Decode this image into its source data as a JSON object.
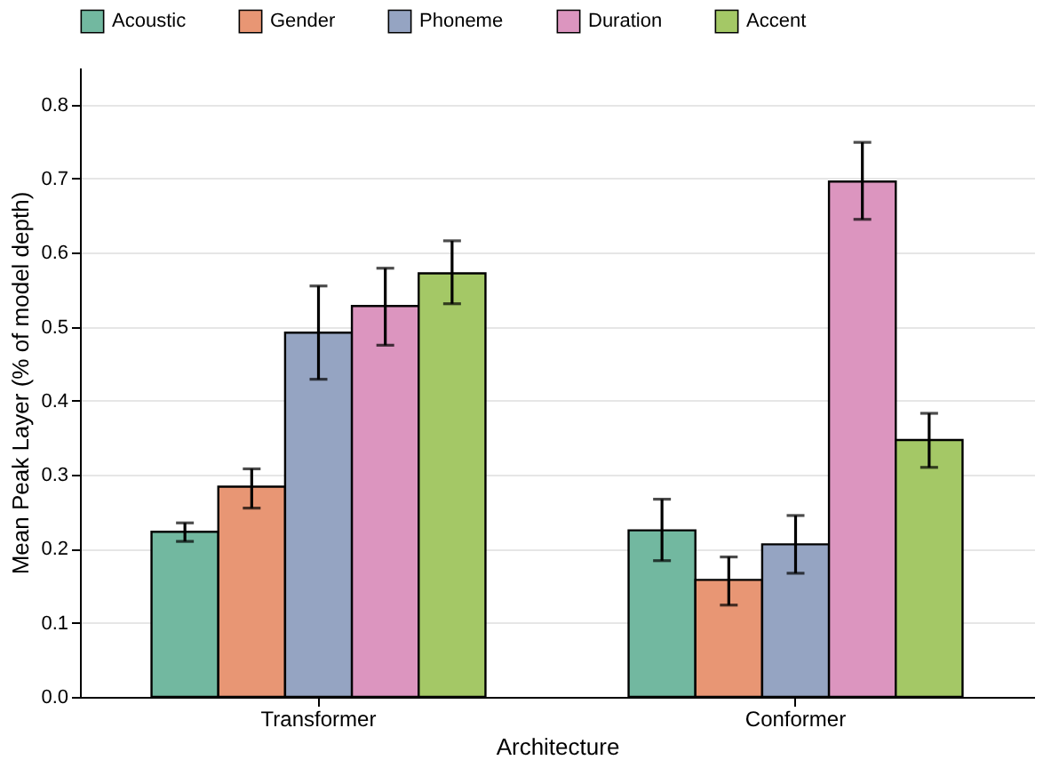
{
  "chart_data": {
    "type": "bar",
    "xlabel": "Architecture",
    "ylabel": "Mean Peak Layer (% of model depth)",
    "categories": [
      "Transformer",
      "Conformer"
    ],
    "series": [
      {
        "name": "Acoustic",
        "color": "#72b8a0",
        "values": [
          0.223,
          0.225
        ],
        "errors": [
          [
            0.21,
            0.235
          ],
          [
            0.184,
            0.267
          ]
        ]
      },
      {
        "name": "Gender",
        "color": "#e89674",
        "values": [
          0.284,
          0.158
        ],
        "errors": [
          [
            0.255,
            0.308
          ],
          [
            0.124,
            0.189
          ]
        ]
      },
      {
        "name": "Phoneme",
        "color": "#95a4c2",
        "values": [
          0.492,
          0.206
        ],
        "errors": [
          [
            0.429,
            0.555
          ],
          [
            0.167,
            0.245
          ]
        ]
      },
      {
        "name": "Duration",
        "color": "#dc95bf",
        "values": [
          0.528,
          0.696
        ],
        "errors": [
          [
            0.475,
            0.579
          ],
          [
            0.645,
            0.749
          ]
        ]
      },
      {
        "name": "Accent",
        "color": "#a4c866",
        "values": [
          0.572,
          0.347
        ],
        "errors": [
          [
            0.531,
            0.616
          ],
          [
            0.31,
            0.383
          ]
        ]
      }
    ],
    "ylim": [
      0,
      0.85
    ],
    "yticks": [
      {
        "value": 0,
        "label": "0.0"
      },
      0.1,
      0.2,
      0.3,
      0.4,
      0.5,
      0.6,
      0.7,
      0.8
    ],
    "grid": "y",
    "legend": "top"
  }
}
